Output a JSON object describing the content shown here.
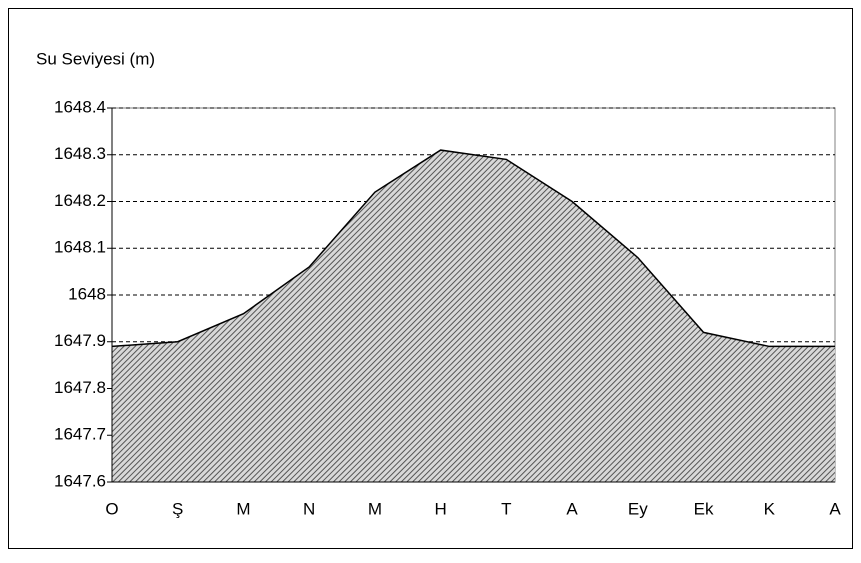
{
  "chart_data": {
    "type": "area",
    "y_label": "Su Seviyesi (m)",
    "categories": [
      "O",
      "Ş",
      "M",
      "N",
      "M",
      "H",
      "T",
      "A",
      "Ey",
      "Ek",
      "K",
      "A"
    ],
    "values": [
      1647.89,
      1647.9,
      1647.96,
      1648.06,
      1648.22,
      1648.31,
      1648.29,
      1648.2,
      1648.08,
      1647.92,
      1647.89,
      1647.89
    ],
    "color": "#808080",
    "ylim": [
      1647.6,
      1648.4
    ],
    "yticks": [
      1647.6,
      1647.7,
      1647.8,
      1647.9,
      1648,
      1648.1,
      1648.2,
      1648.3,
      1648.4
    ],
    "grid": true
  }
}
